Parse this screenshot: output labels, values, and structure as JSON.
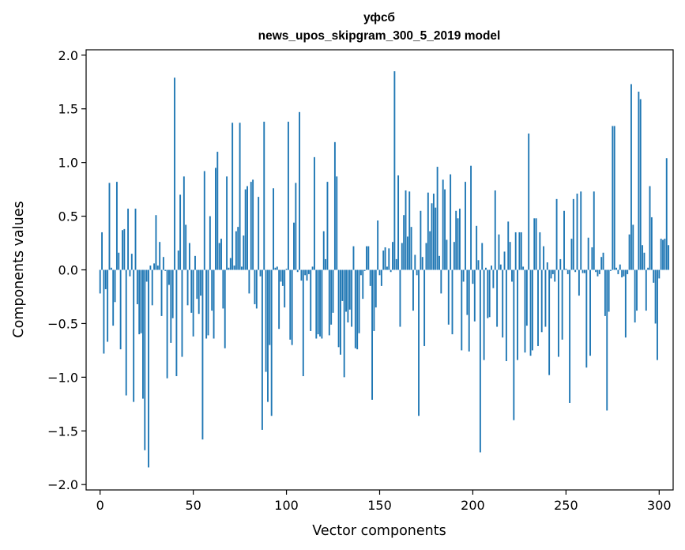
{
  "chart_data": {
    "type": "bar",
    "title": "уфсб",
    "subtitle": "news_upos_skipgram_300_5_2019 model",
    "xlabel": "Vector components",
    "ylabel": "Components values",
    "xlim": [
      -7.5,
      307.5
    ],
    "ylim": [
      -2.05,
      2.05
    ],
    "x_ticks": [
      0,
      50,
      100,
      150,
      200,
      250,
      300
    ],
    "y_ticks": [
      -2.0,
      -1.5,
      -1.0,
      -0.5,
      0.0,
      0.5,
      1.0,
      1.5,
      2.0
    ],
    "x_tick_labels": [
      "0",
      "50",
      "100",
      "150",
      "200",
      "250",
      "300"
    ],
    "y_tick_labels": [
      "−2.0",
      "−1.5",
      "−1.0",
      "−0.5",
      "0.0",
      "0.5",
      "1.0",
      "1.5",
      "2.0"
    ],
    "bar_color": "#1f77b4",
    "grid": false,
    "values": [
      -0.22,
      0.35,
      -0.78,
      -0.18,
      -0.67,
      0.81,
      0.02,
      -0.52,
      -0.3,
      0.82,
      0.16,
      -0.74,
      0.37,
      0.38,
      -1.17,
      0.57,
      -0.06,
      0.15,
      -1.23,
      0.57,
      -0.32,
      -0.6,
      -0.59,
      -1.2,
      -1.68,
      -0.11,
      -1.84,
      0.04,
      -0.33,
      0.06,
      0.51,
      0.04,
      0.26,
      -0.43,
      0.12,
      -0.01,
      -1.01,
      -0.14,
      -0.68,
      -0.45,
      1.79,
      -0.99,
      0.18,
      0.7,
      -0.81,
      0.87,
      0.42,
      -0.33,
      0.25,
      -0.4,
      -0.62,
      0.13,
      -0.27,
      -0.41,
      -0.24,
      -1.58,
      0.92,
      -0.64,
      -0.61,
      0.5,
      -0.38,
      -0.64,
      0.95,
      1.1,
      0.25,
      0.29,
      -0.36,
      -0.73,
      0.87,
      0.02,
      0.11,
      1.37,
      0.04,
      0.36,
      0.4,
      1.37,
      0.03,
      0.32,
      0.75,
      0.78,
      -0.22,
      0.82,
      0.84,
      -0.32,
      -0.36,
      0.68,
      -0.06,
      -1.49,
      1.38,
      -0.95,
      -1.23,
      -0.7,
      -1.36,
      0.76,
      0.02,
      0.03,
      -0.55,
      -0.11,
      -0.15,
      -0.35,
      0.01,
      1.38,
      -0.65,
      -0.7,
      0.44,
      0.81,
      -0.02,
      1.47,
      -0.1,
      -0.99,
      -0.05,
      -0.1,
      -0.04,
      -0.57,
      0.03,
      1.05,
      -0.64,
      -0.6,
      -0.62,
      -0.64,
      0.36,
      0.1,
      0.82,
      -0.61,
      -0.51,
      -0.4,
      1.19,
      0.87,
      -0.72,
      -0.79,
      -0.29,
      -1.0,
      -0.39,
      -0.49,
      -0.37,
      -0.53,
      0.22,
      -0.73,
      -0.74,
      -0.59,
      -0.05,
      -0.27,
      -0.01,
      0.22,
      0.22,
      -0.15,
      -1.21,
      -0.57,
      -0.35,
      0.46,
      -0.05,
      -0.15,
      0.18,
      0.21,
      0.03,
      0.2,
      -0.02,
      0.26,
      1.85,
      0.1,
      0.88,
      -0.53,
      0.25,
      0.51,
      0.74,
      0.31,
      0.73,
      0.4,
      -0.38,
      0.14,
      -0.05,
      -1.36,
      0.55,
      0.12,
      -0.71,
      0.25,
      0.72,
      0.36,
      0.62,
      0.71,
      0.58,
      0.96,
      0.13,
      -0.22,
      0.84,
      0.75,
      0.28,
      -0.51,
      0.89,
      -0.6,
      0.26,
      0.55,
      0.48,
      0.57,
      -0.75,
      -0.11,
      0.82,
      -0.42,
      -0.76,
      0.97,
      -0.13,
      -0.48,
      0.41,
      0.09,
      -1.7,
      0.25,
      -0.84,
      0.02,
      -0.45,
      -0.44,
      0.04,
      -0.17,
      0.74,
      -0.53,
      0.33,
      0.05,
      -0.63,
      0.17,
      -0.85,
      0.45,
      0.26,
      -0.11,
      -1.4,
      0.35,
      -0.84,
      0.35,
      0.35,
      0.03,
      -0.77,
      -0.52,
      1.27,
      -0.8,
      -0.75,
      0.48,
      0.48,
      -0.71,
      0.35,
      -0.58,
      0.22,
      -0.53,
      0.07,
      -0.98,
      -0.08,
      -0.04,
      -0.11,
      0.66,
      -0.81,
      0.1,
      -0.65,
      0.55,
      0.01,
      -0.04,
      -1.24,
      0.29,
      0.66,
      -0.02,
      0.71,
      -0.24,
      0.73,
      -0.03,
      -0.03,
      -0.91,
      0.3,
      -0.8,
      0.21,
      0.73,
      -0.02,
      -0.06,
      -0.04,
      0.12,
      0.16,
      -0.43,
      -1.31,
      -0.39,
      -0.01,
      1.34,
      1.34,
      0.02,
      -0.04,
      0.05,
      -0.07,
      -0.06,
      -0.63,
      -0.04,
      0.33,
      1.73,
      0.42,
      -0.49,
      -0.38,
      1.66,
      1.59,
      0.23,
      0.16,
      -0.38,
      0.02,
      0.78,
      0.49,
      -0.12,
      -0.5,
      -0.84,
      -0.08,
      0.29,
      0.28,
      0.29,
      1.04,
      0.23
    ]
  }
}
